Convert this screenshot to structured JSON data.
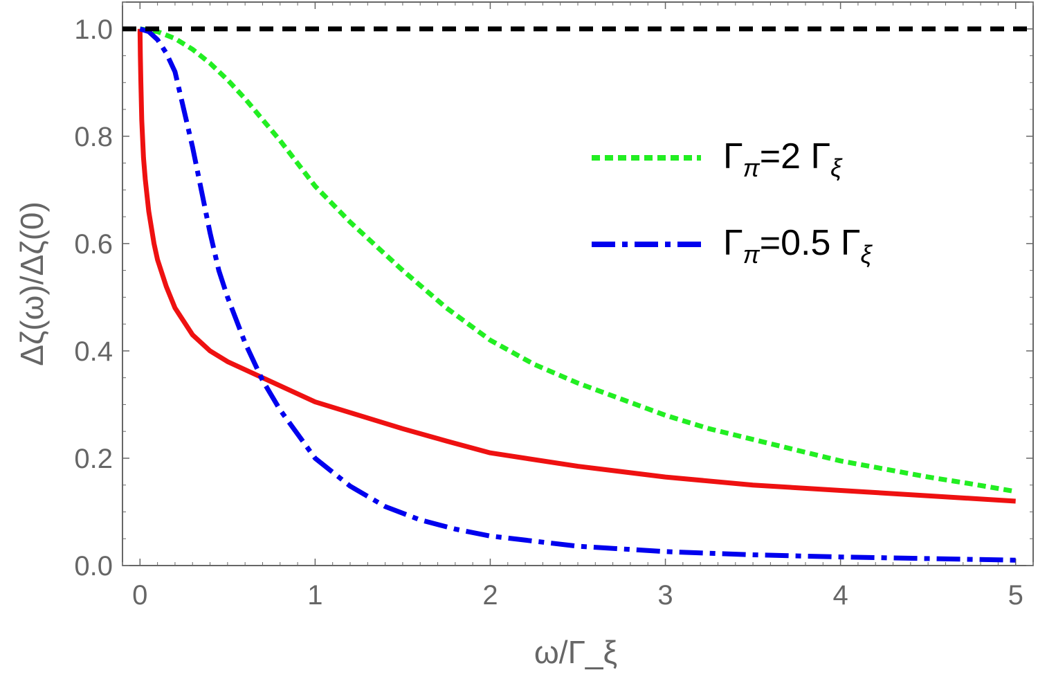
{
  "chart_data": {
    "type": "line",
    "title": "",
    "xlabel": "ω/Γ_ξ",
    "ylabel": "Δζ(ω)/Δζ(0)",
    "xlim": [
      -0.1,
      5.1
    ],
    "ylim": [
      0,
      1.05
    ],
    "x_ticks": [
      0,
      1,
      2,
      3,
      4,
      5
    ],
    "y_ticks": [
      0.0,
      0.2,
      0.4,
      0.6,
      0.8,
      1.0
    ],
    "x_tick_labels": [
      "0",
      "1",
      "2",
      "3",
      "4",
      "5"
    ],
    "y_tick_labels": [
      "0.0",
      "0.2",
      "0.4",
      "0.6",
      "0.8",
      "1.0"
    ],
    "grid": false,
    "legend_position": "top-right",
    "series": [
      {
        "key": "reference",
        "color": "#000000",
        "style": "dashed",
        "x": [
          -0.1,
          5.1
        ],
        "y": [
          1.0,
          1.0
        ]
      },
      {
        "key": "gamma_2",
        "legend_label": "Γ_π=2 Γ_ξ",
        "legend_main": "Γ",
        "legend_sub": "π",
        "legend_mid": "=2 Γ",
        "legend_sub2": "ξ",
        "color": "#22ee22",
        "style": "dotted",
        "x": [
          0,
          0.1,
          0.2,
          0.3,
          0.4,
          0.5,
          0.6,
          0.8,
          1.0,
          1.2,
          1.5,
          1.75,
          2.0,
          2.25,
          2.5,
          2.75,
          3.0,
          3.25,
          3.5,
          3.75,
          4.0,
          4.25,
          4.5,
          4.75,
          5.0
        ],
        "y": [
          1.0,
          0.995,
          0.982,
          0.962,
          0.936,
          0.905,
          0.87,
          0.792,
          0.707,
          0.64,
          0.55,
          0.48,
          0.42,
          0.375,
          0.34,
          0.31,
          0.28,
          0.255,
          0.235,
          0.215,
          0.195,
          0.18,
          0.165,
          0.152,
          0.138
        ]
      },
      {
        "key": "gamma_05",
        "legend_label": "Γ_π=0.5 Γ_ξ",
        "legend_main": "Γ",
        "legend_sub": "π",
        "legend_mid": "=0.5 Γ",
        "legend_sub2": "ξ",
        "color": "#0000ee",
        "style": "dash-dot",
        "x": [
          0,
          0.05,
          0.1,
          0.15,
          0.2,
          0.25,
          0.3,
          0.35,
          0.4,
          0.45,
          0.5,
          0.6,
          0.7,
          0.8,
          0.9,
          1.0,
          1.2,
          1.4,
          1.6,
          1.8,
          2.0,
          2.5,
          3.0,
          3.5,
          4.0,
          4.5,
          5.0
        ],
        "y": [
          1.0,
          0.995,
          0.98,
          0.955,
          0.92,
          0.85,
          0.78,
          0.7,
          0.62,
          0.55,
          0.5,
          0.415,
          0.345,
          0.29,
          0.245,
          0.2,
          0.148,
          0.11,
          0.085,
          0.068,
          0.055,
          0.036,
          0.026,
          0.02,
          0.016,
          0.013,
          0.01
        ]
      },
      {
        "key": "solid",
        "color": "#ee1111",
        "style": "solid",
        "x": [
          0,
          0.002,
          0.005,
          0.01,
          0.02,
          0.03,
          0.05,
          0.08,
          0.1,
          0.15,
          0.2,
          0.3,
          0.4,
          0.5,
          0.6,
          0.7,
          0.8,
          1.0,
          1.25,
          1.5,
          1.75,
          2.0,
          2.5,
          3.0,
          3.5,
          4.0,
          4.5,
          5.0
        ],
        "y": [
          1.0,
          0.95,
          0.9,
          0.83,
          0.76,
          0.72,
          0.66,
          0.6,
          0.57,
          0.52,
          0.48,
          0.43,
          0.4,
          0.38,
          0.365,
          0.35,
          0.335,
          0.305,
          0.28,
          0.255,
          0.232,
          0.21,
          0.185,
          0.165,
          0.15,
          0.14,
          0.13,
          0.12
        ]
      }
    ]
  }
}
